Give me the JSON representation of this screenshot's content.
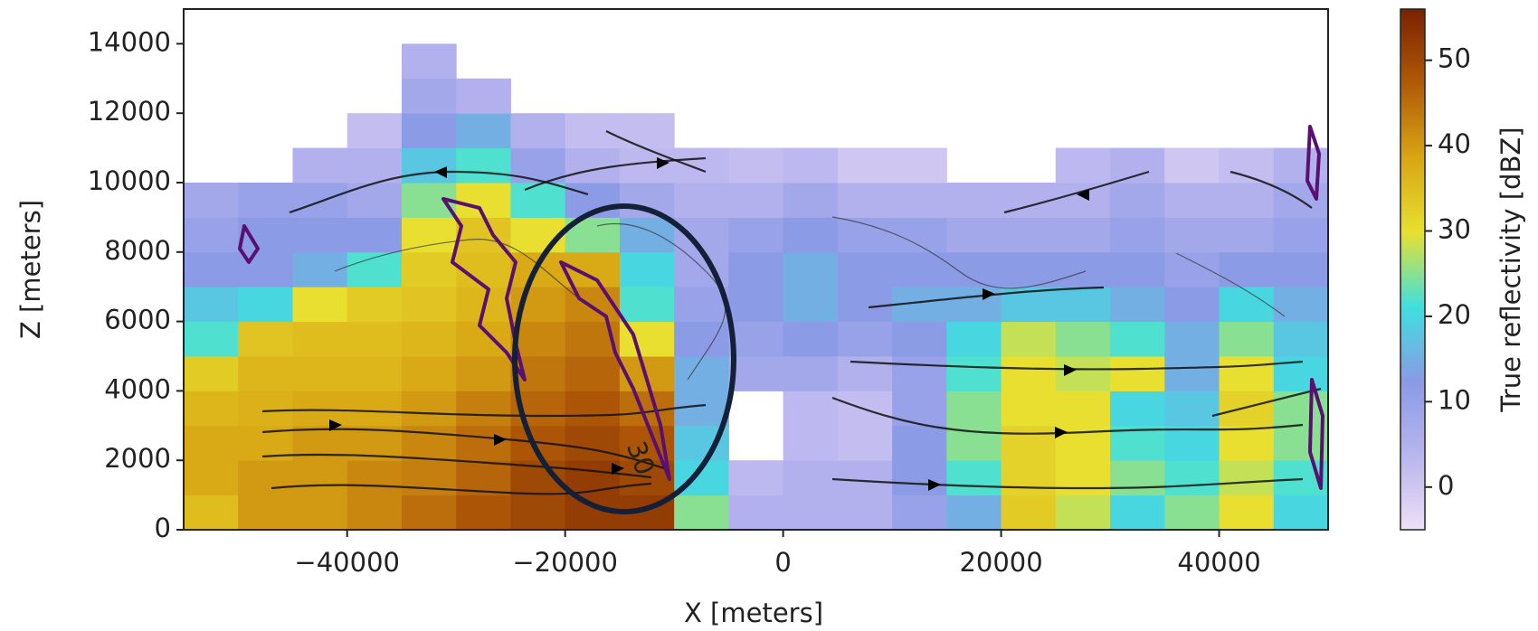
{
  "chart_data": {
    "type": "heatmap",
    "xlabel": "X [meters]",
    "ylabel": "Z [meters]",
    "colorbar_label": "True reflectivity [dBZ]",
    "contour_label": "30",
    "xlim": [
      -55000,
      50000
    ],
    "ylim": [
      0,
      15000
    ],
    "zlim": [
      -5,
      56
    ],
    "xticks": [
      {
        "value": -40000,
        "label": "−40000"
      },
      {
        "value": -20000,
        "label": "−20000"
      },
      0,
      20000,
      40000
    ],
    "yticks": [
      0,
      2000,
      4000,
      6000,
      8000,
      10000,
      12000,
      14000
    ],
    "zticks": [
      0,
      10,
      20,
      30,
      40,
      50
    ],
    "colormap": [
      "#ecdff7",
      "#b9b5ee",
      "#8a9ae6",
      "#3ee0e0",
      "#e8e030",
      "#d9a514",
      "#b05a08",
      "#7a2200"
    ],
    "x": [
      -52500,
      -47500,
      -42500,
      -37500,
      -32500,
      -27500,
      -22500,
      -17500,
      -12500,
      -7500,
      -2500,
      2500,
      7500,
      12500,
      17500,
      22500,
      27500,
      32500,
      37500,
      42500,
      47500
    ],
    "y": [
      500,
      1500,
      2500,
      3500,
      4500,
      5500,
      6500,
      7500,
      8500,
      9500,
      10500,
      11500,
      12500,
      13500,
      14500
    ],
    "values": [
      [
        35,
        38,
        38,
        36,
        33,
        22,
        18,
        12,
        10,
        8,
        null,
        null,
        null,
        null,
        null
      ],
      [
        40,
        40,
        38,
        37,
        36,
        34,
        20,
        12,
        12,
        10,
        null,
        null,
        null,
        null,
        null
      ],
      [
        40,
        40,
        40,
        38,
        36,
        35,
        30,
        15,
        12,
        10,
        5,
        null,
        null,
        null,
        null
      ],
      [
        42,
        42,
        40,
        38,
        36,
        35,
        33,
        22,
        12,
        8,
        5,
        2,
        null,
        null,
        null
      ],
      [
        45,
        43,
        42,
        40,
        38,
        36,
        34,
        33,
        30,
        25,
        18,
        12,
        8,
        5,
        null
      ],
      [
        48,
        46,
        45,
        43,
        40,
        38,
        36,
        35,
        34,
        30,
        22,
        15,
        5,
        null,
        null
      ],
      [
        50,
        50,
        48,
        46,
        44,
        42,
        40,
        38,
        30,
        22,
        10,
        5,
        null,
        null,
        null
      ],
      [
        52,
        52,
        50,
        48,
        46,
        44,
        42,
        38,
        25,
        12,
        5,
        2,
        null,
        null,
        null
      ],
      [
        52,
        50,
        48,
        45,
        40,
        30,
        22,
        20,
        15,
        8,
        3,
        2,
        null,
        null,
        null
      ],
      [
        25,
        20,
        18,
        15,
        15,
        12,
        10,
        8,
        8,
        5,
        3,
        null,
        null,
        null,
        null
      ],
      [
        5,
        3,
        null,
        null,
        8,
        10,
        12,
        12,
        10,
        5,
        2,
        null,
        null,
        null,
        null
      ],
      [
        5,
        5,
        3,
        3,
        8,
        12,
        15,
        15,
        12,
        8,
        3,
        null,
        null,
        null,
        null
      ],
      [
        5,
        5,
        2,
        2,
        5,
        10,
        12,
        12,
        10,
        5,
        0,
        null,
        null,
        null,
        null
      ],
      [
        10,
        12,
        12,
        10,
        10,
        12,
        15,
        12,
        10,
        5,
        0,
        null,
        null,
        null,
        null
      ],
      [
        15,
        22,
        25,
        25,
        22,
        20,
        15,
        12,
        8,
        5,
        null,
        null,
        null,
        null,
        null
      ],
      [
        33,
        32,
        32,
        30,
        30,
        28,
        18,
        12,
        8,
        5,
        null,
        null,
        null,
        null,
        null
      ],
      [
        28,
        30,
        30,
        30,
        28,
        25,
        18,
        12,
        8,
        5,
        3,
        null,
        null,
        null,
        null
      ],
      [
        20,
        25,
        22,
        20,
        30,
        22,
        15,
        12,
        10,
        8,
        5,
        null,
        null,
        null,
        null
      ],
      [
        25,
        22,
        20,
        18,
        15,
        15,
        12,
        10,
        8,
        5,
        0,
        null,
        null,
        null,
        null
      ],
      [
        30,
        28,
        30,
        32,
        30,
        25,
        20,
        12,
        8,
        5,
        2,
        null,
        null,
        null,
        null
      ],
      [
        20,
        22,
        25,
        25,
        20,
        18,
        15,
        12,
        10,
        8,
        5,
        null,
        null,
        null,
        null
      ]
    ]
  }
}
